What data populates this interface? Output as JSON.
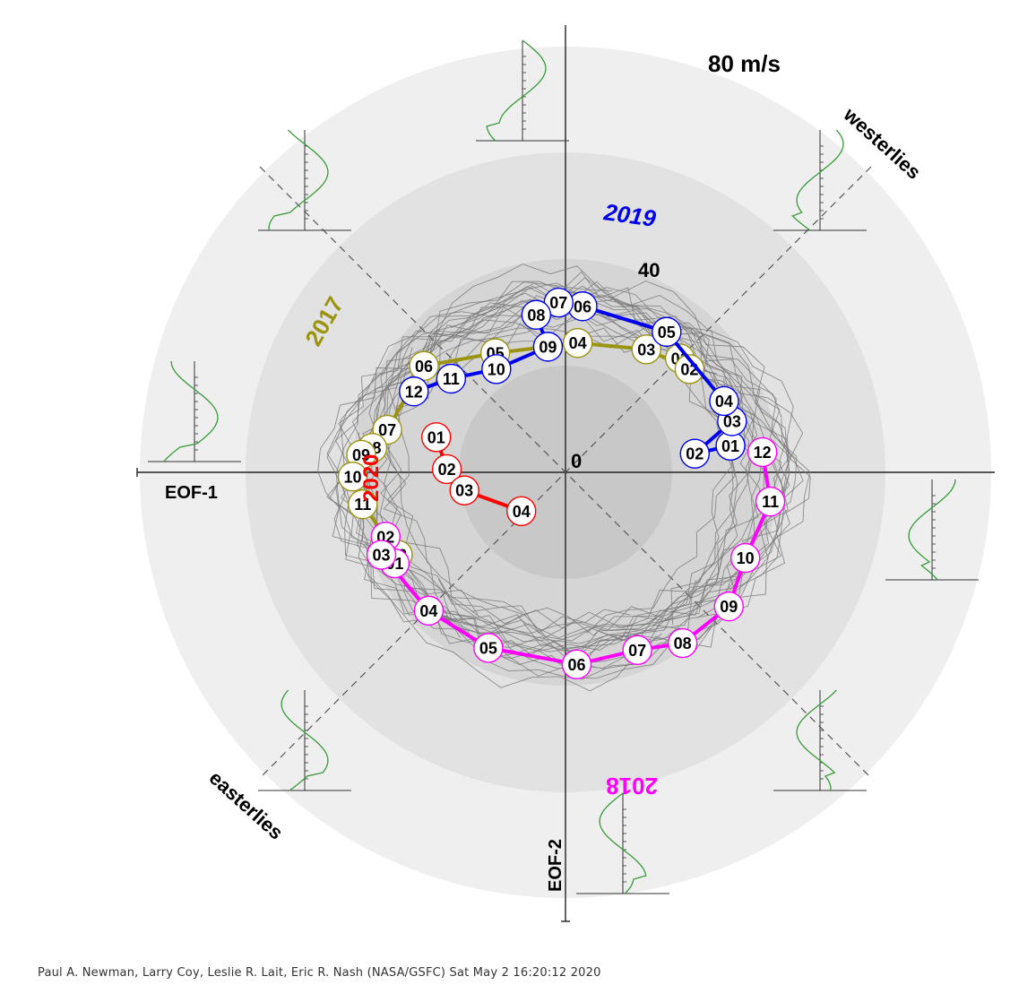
{
  "chart_data": {
    "type": "scatter",
    "subtype": "polar-phase-trajectory",
    "title": "",
    "ring_labels": {
      "outer": "80 m/s",
      "middle": "40",
      "center": "0"
    },
    "axis_labels": {
      "x": "EOF-1",
      "y": "EOF-2"
    },
    "quadrant_labels": {
      "upper_right": "westerlies",
      "lower_left": "easterlies"
    },
    "max_radius_ms": 80,
    "colors": {
      "2017": "#9b9410",
      "2018": "#ff00ff",
      "2019": "#0000ee",
      "2020": "#ff0000",
      "background_tracks": "#777777"
    },
    "series": [
      {
        "name": "2017",
        "points": [
          {
            "label": "01",
            "eof1": 21.5,
            "eof2": 21.4
          },
          {
            "label": "02",
            "eof1": 23.3,
            "eof2": 19.4
          },
          {
            "label": "03",
            "eof1": 15.2,
            "eof2": 23.1
          },
          {
            "label": "04",
            "eof1": 2.3,
            "eof2": 24.3
          },
          {
            "label": "05",
            "eof1": -13.2,
            "eof2": 22.4
          },
          {
            "label": "06",
            "eof1": -26.6,
            "eof2": 20.0
          },
          {
            "label": "07",
            "eof1": -33.5,
            "eof2": 8.0
          },
          {
            "label": "08",
            "eof1": -36.3,
            "eof2": 4.6
          },
          {
            "label": "09",
            "eof1": -38.4,
            "eof2": 3.3
          },
          {
            "label": "10",
            "eof1": -40.0,
            "eof2": -0.8
          },
          {
            "label": "11",
            "eof1": -38.1,
            "eof2": -6.0
          },
          {
            "label": "12",
            "eof1": -31.5,
            "eof2": -15.5
          }
        ]
      },
      {
        "name": "2018",
        "points": [
          {
            "label": "01",
            "eof1": -32.1,
            "eof2": -17.1
          },
          {
            "label": "02",
            "eof1": -33.8,
            "eof2": -12.1
          },
          {
            "label": "03",
            "eof1": -34.6,
            "eof2": -15.5
          },
          {
            "label": "04",
            "eof1": -25.7,
            "eof2": -26.0
          },
          {
            "label": "05",
            "eof1": -14.5,
            "eof2": -33.0
          },
          {
            "label": "06",
            "eof1": 2.1,
            "eof2": -36.1
          },
          {
            "label": "07",
            "eof1": 13.5,
            "eof2": -33.4
          },
          {
            "label": "08",
            "eof1": 22.0,
            "eof2": -32.1
          },
          {
            "label": "09",
            "eof1": 30.7,
            "eof2": -25.2
          },
          {
            "label": "10",
            "eof1": 33.8,
            "eof2": -16.1
          },
          {
            "label": "11",
            "eof1": 38.5,
            "eof2": -5.5
          },
          {
            "label": "12",
            "eof1": 37.0,
            "eof2": 3.8
          }
        ]
      },
      {
        "name": "2019",
        "points": [
          {
            "label": "01",
            "eof1": 31.0,
            "eof2": 5.0
          },
          {
            "label": "02",
            "eof1": 24.3,
            "eof2": 3.5
          },
          {
            "label": "03",
            "eof1": 31.3,
            "eof2": 9.6
          },
          {
            "label": "04",
            "eof1": 29.8,
            "eof2": 13.4
          },
          {
            "label": "05",
            "eof1": 19.0,
            "eof2": 26.4
          },
          {
            "label": "06",
            "eof1": 3.2,
            "eof2": 31.2
          },
          {
            "label": "07",
            "eof1": -1.3,
            "eof2": 31.9
          },
          {
            "label": "08",
            "eof1": -5.5,
            "eof2": 29.6
          },
          {
            "label": "09",
            "eof1": -3.3,
            "eof2": 23.6
          },
          {
            "label": "10",
            "eof1": -13.0,
            "eof2": 19.4
          },
          {
            "label": "11",
            "eof1": -21.5,
            "eof2": 17.6
          },
          {
            "label": "12",
            "eof1": -28.5,
            "eof2": 15.2
          }
        ]
      },
      {
        "name": "2020",
        "points": [
          {
            "label": "01",
            "eof1": -24.3,
            "eof2": 6.6
          },
          {
            "label": "02",
            "eof1": -22.3,
            "eof2": 0.6
          },
          {
            "label": "03",
            "eof1": -19.0,
            "eof2": -3.4
          },
          {
            "label": "04",
            "eof1": -8.3,
            "eof2": -7.3
          }
        ]
      }
    ],
    "profile_panels": 8,
    "grid": false,
    "legend": "none"
  },
  "credit": "Paul A. Newman, Larry Coy, Leslie R. Lait, Eric R. Nash (NASA/GSFC) Sat May  2 16:20:12 2020"
}
